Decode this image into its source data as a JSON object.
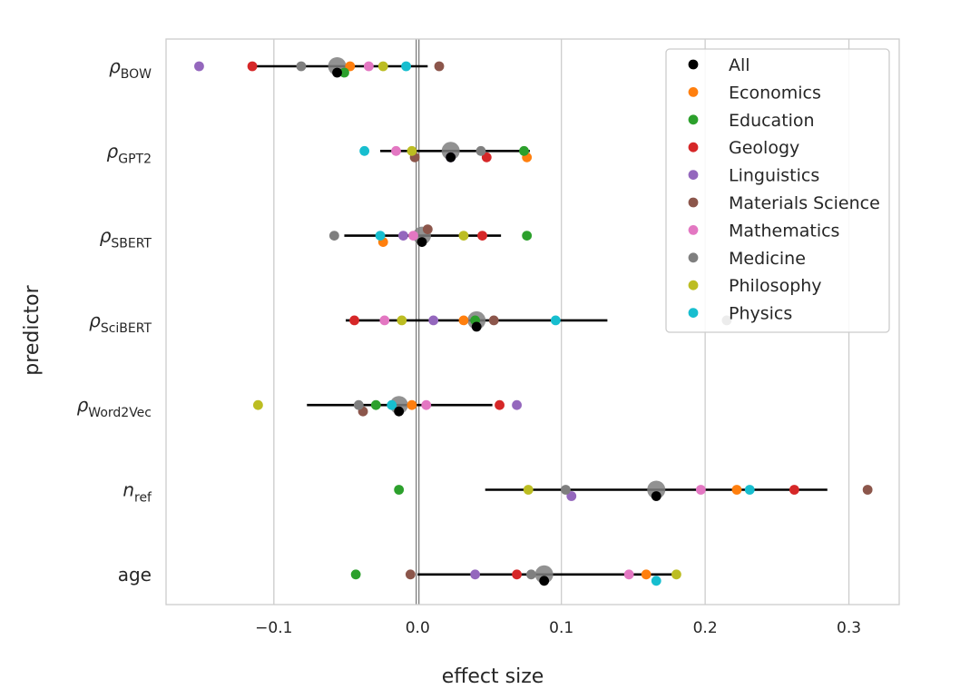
{
  "chart_data": {
    "type": "scatter",
    "subtype": "forest-plot",
    "title": "",
    "xlabel": "effect size",
    "ylabel": "predictor",
    "xlim": [
      -0.175,
      0.335
    ],
    "xticks": [
      -0.1,
      0.0,
      0.1,
      0.2,
      0.3
    ],
    "xtick_labels": [
      "−0.1",
      "0.0",
      "0.1",
      "0.2",
      "0.3"
    ],
    "grid": "vertical",
    "zero_line": 0.0,
    "legend_position": "upper-right",
    "colors": {
      "All": "#000000",
      "Economics": "#ff7f0e",
      "Education": "#2ca02c",
      "Geology": "#d62728",
      "Linguistics": "#9467bd",
      "Materials Science": "#8c564b",
      "Mathematics": "#e377c2",
      "Medicine": "#7f7f7f",
      "Philosophy": "#bcbd22",
      "Physics": "#17becf"
    },
    "legend": [
      "All",
      "Economics",
      "Education",
      "Geology",
      "Linguistics",
      "Materials Science",
      "Mathematics",
      "Medicine",
      "Philosophy",
      "Physics"
    ],
    "predictors": [
      {
        "label_main": "ρ",
        "label_sub": "BOW",
        "italic": true,
        "all": {
          "estimate": -0.056,
          "ci": [
            -0.116,
            0.007
          ]
        },
        "fields": [
          {
            "field": "Economics",
            "value": -0.047,
            "side": 0
          },
          {
            "field": "Education",
            "value": -0.051,
            "side": 1
          },
          {
            "field": "Geology",
            "value": -0.115,
            "side": 0
          },
          {
            "field": "Linguistics",
            "value": -0.152,
            "side": 0
          },
          {
            "field": "Materials Science",
            "value": 0.015,
            "side": 0
          },
          {
            "field": "Mathematics",
            "value": -0.034,
            "side": 0
          },
          {
            "field": "Medicine",
            "value": -0.081,
            "side": 0
          },
          {
            "field": "Philosophy",
            "value": -0.024,
            "side": 0
          },
          {
            "field": "Physics",
            "value": -0.008,
            "side": 0
          }
        ]
      },
      {
        "label_main": "ρ",
        "label_sub": "GPT2",
        "italic": true,
        "all": {
          "estimate": 0.023,
          "ci": [
            -0.026,
            0.078
          ]
        },
        "fields": [
          {
            "field": "Economics",
            "value": 0.076,
            "side": 1
          },
          {
            "field": "Education",
            "value": 0.074,
            "side": 0
          },
          {
            "field": "Geology",
            "value": 0.048,
            "side": 1
          },
          {
            "field": "Linguistics",
            "value": 0.023,
            "side": 1
          },
          {
            "field": "Materials Science",
            "value": -0.002,
            "side": 1
          },
          {
            "field": "Mathematics",
            "value": -0.015,
            "side": 0
          },
          {
            "field": "Medicine",
            "value": 0.044,
            "side": 0
          },
          {
            "field": "Philosophy",
            "value": -0.004,
            "side": 0
          },
          {
            "field": "Physics",
            "value": -0.037,
            "side": 0
          }
        ]
      },
      {
        "label_main": "ρ",
        "label_sub": "SBERT",
        "italic": true,
        "all": {
          "estimate": 0.003,
          "ci": [
            -0.051,
            0.058
          ]
        },
        "fields": [
          {
            "field": "Economics",
            "value": -0.024,
            "side": 1
          },
          {
            "field": "Education",
            "value": 0.076,
            "side": 0
          },
          {
            "field": "Geology",
            "value": 0.045,
            "side": 0
          },
          {
            "field": "Linguistics",
            "value": -0.01,
            "side": 0
          },
          {
            "field": "Materials Science",
            "value": 0.007,
            "side": -1
          },
          {
            "field": "Mathematics",
            "value": -0.003,
            "side": 0
          },
          {
            "field": "Medicine",
            "value": -0.058,
            "side": 0
          },
          {
            "field": "Philosophy",
            "value": 0.032,
            "side": 0
          },
          {
            "field": "Physics",
            "value": -0.026,
            "side": 0
          }
        ]
      },
      {
        "label_main": "ρ",
        "label_sub": "SciBERT",
        "italic": true,
        "all": {
          "estimate": 0.041,
          "ci": [
            -0.05,
            0.132
          ]
        },
        "fields": [
          {
            "field": "Economics",
            "value": 0.032,
            "side": 0
          },
          {
            "field": "Education",
            "value": 0.04,
            "side": 0
          },
          {
            "field": "Geology",
            "value": -0.044,
            "side": 0
          },
          {
            "field": "Linguistics",
            "value": 0.011,
            "side": 0
          },
          {
            "field": "Materials Science",
            "value": 0.053,
            "side": 0
          },
          {
            "field": "Mathematics",
            "value": -0.023,
            "side": 0
          },
          {
            "field": "Medicine",
            "value": 0.215,
            "side": 0
          },
          {
            "field": "Philosophy",
            "value": -0.011,
            "side": 0
          },
          {
            "field": "Physics",
            "value": 0.096,
            "side": 0
          }
        ]
      },
      {
        "label_main": "ρ",
        "label_sub": "Word2Vec",
        "italic": true,
        "all": {
          "estimate": -0.013,
          "ci": [
            -0.077,
            0.052
          ]
        },
        "fields": [
          {
            "field": "Economics",
            "value": -0.004,
            "side": 0
          },
          {
            "field": "Education",
            "value": -0.029,
            "side": 0
          },
          {
            "field": "Geology",
            "value": 0.057,
            "side": 0
          },
          {
            "field": "Linguistics",
            "value": 0.069,
            "side": 0
          },
          {
            "field": "Materials Science",
            "value": -0.038,
            "side": 1
          },
          {
            "field": "Mathematics",
            "value": 0.006,
            "side": 0
          },
          {
            "field": "Medicine",
            "value": -0.041,
            "side": 0
          },
          {
            "field": "Philosophy",
            "value": -0.111,
            "side": 0
          },
          {
            "field": "Physics",
            "value": -0.018,
            "side": 0
          }
        ]
      },
      {
        "label_main": "n",
        "label_sub": "ref",
        "italic": true,
        "all": {
          "estimate": 0.166,
          "ci": [
            0.047,
            0.285
          ]
        },
        "fields": [
          {
            "field": "Economics",
            "value": 0.222,
            "side": 0
          },
          {
            "field": "Education",
            "value": -0.013,
            "side": 0
          },
          {
            "field": "Geology",
            "value": 0.262,
            "side": 0
          },
          {
            "field": "Linguistics",
            "value": 0.107,
            "side": 1
          },
          {
            "field": "Materials Science",
            "value": 0.313,
            "side": 0
          },
          {
            "field": "Mathematics",
            "value": 0.197,
            "side": 0
          },
          {
            "field": "Medicine",
            "value": 0.103,
            "side": 0
          },
          {
            "field": "Philosophy",
            "value": 0.077,
            "side": 0
          },
          {
            "field": "Physics",
            "value": 0.231,
            "side": 0
          }
        ]
      },
      {
        "label_main": "age",
        "label_sub": "",
        "italic": false,
        "all": {
          "estimate": 0.088,
          "ci": [
            0.0,
            0.18
          ]
        },
        "fields": [
          {
            "field": "Economics",
            "value": 0.159,
            "side": 0
          },
          {
            "field": "Education",
            "value": -0.043,
            "side": 0
          },
          {
            "field": "Geology",
            "value": 0.069,
            "side": 0
          },
          {
            "field": "Linguistics",
            "value": 0.04,
            "side": 0
          },
          {
            "field": "Materials Science",
            "value": -0.005,
            "side": 0
          },
          {
            "field": "Mathematics",
            "value": 0.147,
            "side": 0
          },
          {
            "field": "Medicine",
            "value": 0.079,
            "side": 0
          },
          {
            "field": "Philosophy",
            "value": 0.18,
            "side": 0
          },
          {
            "field": "Physics",
            "value": 0.166,
            "side": 1
          }
        ]
      }
    ]
  }
}
